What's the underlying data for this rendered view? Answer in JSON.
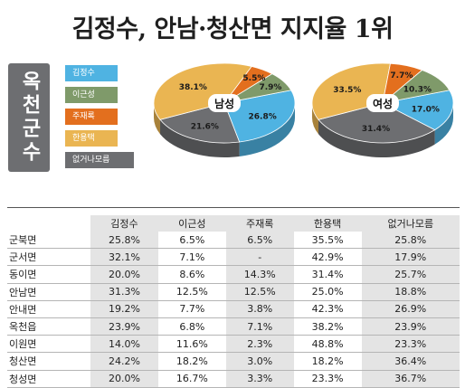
{
  "title": "김정수, 안남·청산면 지지율 1위",
  "region": "옥천군수",
  "legend": [
    {
      "label": "김정수",
      "color": "#4fb3e2"
    },
    {
      "label": "이근성",
      "color": "#7f9a6a"
    },
    {
      "label": "주재록",
      "color": "#e36f1e"
    },
    {
      "label": "한용택",
      "color": "#eab552"
    },
    {
      "label": "없거나모름",
      "color": "#6d6e71"
    }
  ],
  "chart_data": [
    {
      "type": "pie",
      "center_label": "남성",
      "slices": [
        {
          "name": "김정수",
          "value": 26.8,
          "label": "26.8%"
        },
        {
          "name": "이근성",
          "value": 7.9,
          "label": "7.9%"
        },
        {
          "name": "주재록",
          "value": 5.5,
          "label": "5.5%"
        },
        {
          "name": "한용택",
          "value": 38.1,
          "label": "38.1%"
        },
        {
          "name": "없거나모름",
          "value": 21.6,
          "label": "21.6%"
        }
      ]
    },
    {
      "type": "pie",
      "center_label": "여성",
      "slices": [
        {
          "name": "김정수",
          "value": 17.0,
          "label": "17.0%"
        },
        {
          "name": "이근성",
          "value": 10.3,
          "label": "10.3%"
        },
        {
          "name": "주재록",
          "value": 7.7,
          "label": "7.7%"
        },
        {
          "name": "한용택",
          "value": 33.5,
          "label": "33.5%"
        },
        {
          "name": "없거나모름",
          "value": 31.4,
          "label": "31.4%"
        }
      ]
    },
    {
      "type": "table",
      "columns": [
        "김정수",
        "이근성",
        "주재록",
        "한용택",
        "없거나모름"
      ],
      "rows": [
        {
          "name": "군북면",
          "values": [
            "25.8%",
            "6.5%",
            "6.5%",
            "35.5%",
            "25.8%"
          ]
        },
        {
          "name": "군서면",
          "values": [
            "32.1%",
            "7.1%",
            "-",
            "42.9%",
            "17.9%"
          ]
        },
        {
          "name": "동이면",
          "values": [
            "20.0%",
            "8.6%",
            "14.3%",
            "31.4%",
            "25.7%"
          ]
        },
        {
          "name": "안남면",
          "values": [
            "31.3%",
            "12.5%",
            "12.5%",
            "25.0%",
            "18.8%"
          ]
        },
        {
          "name": "안내면",
          "values": [
            "19.2%",
            "7.7%",
            "3.8%",
            "42.3%",
            "26.9%"
          ]
        },
        {
          "name": "옥천읍",
          "values": [
            "23.9%",
            "6.8%",
            "7.1%",
            "38.2%",
            "23.9%"
          ]
        },
        {
          "name": "이원면",
          "values": [
            "14.0%",
            "11.6%",
            "2.3%",
            "48.8%",
            "23.3%"
          ]
        },
        {
          "name": "청산면",
          "values": [
            "24.2%",
            "18.2%",
            "3.0%",
            "18.2%",
            "36.4%"
          ]
        },
        {
          "name": "청성면",
          "values": [
            "20.0%",
            "16.7%",
            "3.3%",
            "23.3%",
            "36.7%"
          ]
        }
      ]
    }
  ]
}
